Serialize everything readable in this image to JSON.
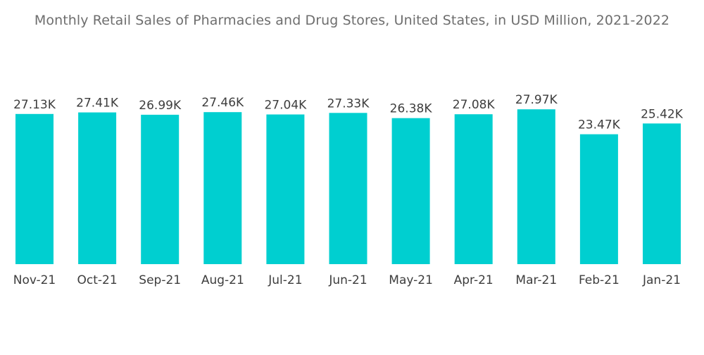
{
  "chart_data": {
    "type": "bar",
    "title": "Monthly Retail Sales of Pharmacies and Drug Stores, United States, in USD Million, 2021-2022",
    "xlabel": "",
    "ylabel": "",
    "categories": [
      "Nov-21",
      "Oct-21",
      "Sep-21",
      "Aug-21",
      "Jul-21",
      "Jun-21",
      "May-21",
      "Apr-21",
      "Mar-21",
      "Feb-21",
      "Jan-21"
    ],
    "values": [
      27130,
      27410,
      26990,
      27460,
      27040,
      27330,
      26380,
      27080,
      27970,
      23470,
      25420
    ],
    "value_labels": [
      "27.13K",
      "27.41K",
      "26.99K",
      "27.46K",
      "27.04K",
      "27.33K",
      "26.38K",
      "27.08K",
      "27.97K",
      "23.47K",
      "25.42K"
    ],
    "ylim": [
      0,
      28000
    ],
    "grid": false,
    "legend": "none",
    "bar_color": "#00cfd0"
  }
}
